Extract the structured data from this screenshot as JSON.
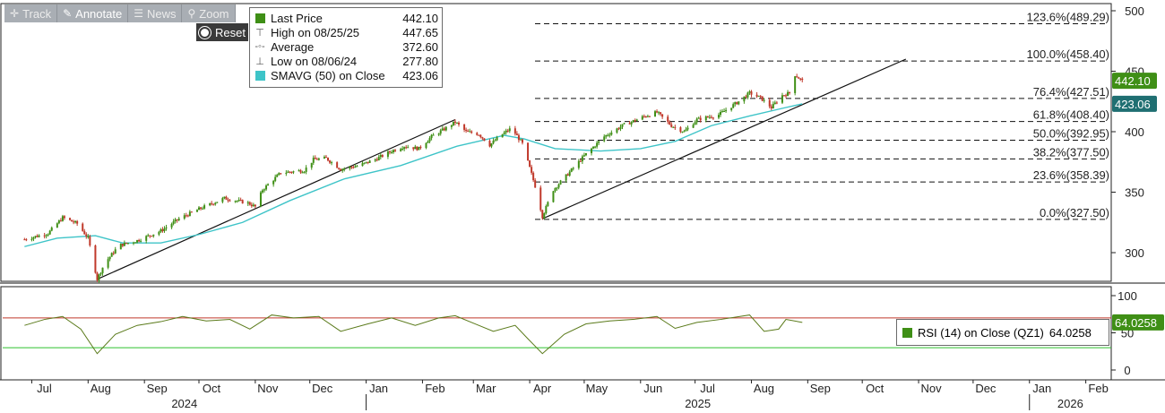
{
  "toolbar": {
    "track": "Track",
    "annotate": "Annotate",
    "news": "News",
    "zoom": "Zoom",
    "reset": "Reset"
  },
  "legend": [
    {
      "label": "Last Price",
      "value": "442.10",
      "icon": "green-square",
      "color": "#3f8f16"
    },
    {
      "label": "High on 08/25/25",
      "value": "447.65",
      "icon": "high-marker"
    },
    {
      "label": "Average",
      "value": "372.60",
      "icon": "average-marker"
    },
    {
      "label": "Low on 08/06/24",
      "value": "277.80",
      "icon": "low-marker"
    },
    {
      "label": "SMAVG (50)  on Close",
      "value": "423.06",
      "icon": "cyan-square",
      "color": "#3ec4c8"
    }
  ],
  "rsi_legend": {
    "label": "RSI (14)  on Close (QZ1)",
    "value": "64.0258"
  },
  "price_tags": {
    "last": "442.10",
    "sma": "423.06",
    "rsi": "64.0258"
  },
  "fib_labels": [
    "123.6%(489.29)",
    "100.0%(458.40)",
    "76.4%(427.51)",
    "61.8%(408.40)",
    "50.0%(392.95)",
    "38.2%(377.50)",
    "23.6%(358.39)",
    "0.0%(327.50)"
  ],
  "colors": {
    "price": "#3f8f16",
    "sma": "#3ec4c8",
    "rsi_line": "#5a7a1a",
    "overbought": "#c0392b",
    "oversold": "#2ec02e"
  },
  "chart_data": [
    {
      "type": "line",
      "title": "",
      "x_months": [
        "Jul",
        "Aug",
        "Sep",
        "Oct",
        "Nov",
        "Dec",
        "Jan",
        "Feb",
        "Mar",
        "Apr",
        "May",
        "Jun",
        "Jul",
        "Aug",
        "Sep",
        "Oct",
        "Nov",
        "Dec",
        "Jan",
        "Feb"
      ],
      "x_years": [
        "2024",
        "2025",
        "2026"
      ],
      "y_ticks": [
        300,
        350,
        400,
        450,
        500
      ],
      "ylim": [
        265,
        505
      ],
      "series": [
        {
          "name": "Last Price",
          "points": [
            [
              "2024-06-27",
              311
            ],
            [
              "2024-07-10",
              316
            ],
            [
              "2024-07-18",
              329
            ],
            [
              "2024-07-26",
              324
            ],
            [
              "2024-08-01",
              312
            ],
            [
              "2024-08-06",
              278
            ],
            [
              "2024-08-10",
              291
            ],
            [
              "2024-08-18",
              306
            ],
            [
              "2024-08-28",
              310
            ],
            [
              "2024-09-10",
              318
            ],
            [
              "2024-09-20",
              328
            ],
            [
              "2024-10-01",
              336
            ],
            [
              "2024-10-15",
              345
            ],
            [
              "2024-10-28",
              341
            ],
            [
              "2024-11-01",
              338
            ],
            [
              "2024-11-05",
              352
            ],
            [
              "2024-11-15",
              366
            ],
            [
              "2024-11-28",
              368
            ],
            [
              "2024-12-03",
              377
            ],
            [
              "2024-12-10",
              378
            ],
            [
              "2024-12-18",
              369
            ],
            [
              "2024-12-28",
              372
            ],
            [
              "2025-01-06",
              377
            ],
            [
              "2025-01-15",
              384
            ],
            [
              "2025-01-22",
              388
            ],
            [
              "2025-01-30",
              386
            ],
            [
              "2025-02-06",
              396
            ],
            [
              "2025-02-14",
              403
            ],
            [
              "2025-02-19",
              408
            ],
            [
              "2025-02-25",
              400
            ],
            [
              "2025-03-04",
              398
            ],
            [
              "2025-03-10",
              389
            ],
            [
              "2025-03-17",
              398
            ],
            [
              "2025-03-22",
              403
            ],
            [
              "2025-03-28",
              390
            ],
            [
              "2025-04-04",
              355
            ],
            [
              "2025-04-08",
              330
            ],
            [
              "2025-04-14",
              352
            ],
            [
              "2025-04-22",
              365
            ],
            [
              "2025-05-01",
              380
            ],
            [
              "2025-05-12",
              396
            ],
            [
              "2025-05-22",
              405
            ],
            [
              "2025-06-02",
              412
            ],
            [
              "2025-06-10",
              416
            ],
            [
              "2025-06-18",
              405
            ],
            [
              "2025-06-25",
              400
            ],
            [
              "2025-07-02",
              410
            ],
            [
              "2025-07-14",
              414
            ],
            [
              "2025-07-25",
              425
            ],
            [
              "2025-07-31",
              432
            ],
            [
              "2025-08-06",
              428
            ],
            [
              "2025-08-12",
              420
            ],
            [
              "2025-08-18",
              430
            ],
            [
              "2025-08-22",
              432
            ],
            [
              "2025-08-25",
              447
            ],
            [
              "2025-08-29",
              442
            ]
          ]
        },
        {
          "name": "SMAVG (50)  on Close",
          "points": [
            [
              "2024-06-27",
              305
            ],
            [
              "2024-07-15",
              312
            ],
            [
              "2024-08-05",
              314
            ],
            [
              "2024-08-20",
              308
            ],
            [
              "2024-09-10",
              308
            ],
            [
              "2024-10-01",
              315
            ],
            [
              "2024-10-25",
              325
            ],
            [
              "2024-11-20",
              343
            ],
            [
              "2024-12-20",
              361
            ],
            [
              "2025-01-20",
              372
            ],
            [
              "2025-02-20",
              388
            ],
            [
              "2025-03-18",
              397
            ],
            [
              "2025-03-29",
              394
            ],
            [
              "2025-04-15",
              386
            ],
            [
              "2025-05-10",
              384
            ],
            [
              "2025-06-01",
              386
            ],
            [
              "2025-06-20",
              392
            ],
            [
              "2025-07-10",
              405
            ],
            [
              "2025-07-31",
              413
            ],
            [
              "2025-08-20",
              420
            ],
            [
              "2025-08-29",
              423
            ]
          ]
        }
      ],
      "trendlines": [
        {
          "from": [
            "2024-08-06",
            278
          ],
          "to": [
            "2025-02-19",
            410
          ]
        },
        {
          "from": [
            "2025-04-08",
            328
          ],
          "to": [
            "2025-10-25",
            460
          ]
        }
      ],
      "fibonacci": [
        {
          "level": "123.6%",
          "price": 489.29
        },
        {
          "level": "100.0%",
          "price": 458.4
        },
        {
          "level": "76.4%",
          "price": 427.51
        },
        {
          "level": "61.8%",
          "price": 408.4
        },
        {
          "level": "50.0%",
          "price": 392.95
        },
        {
          "level": "38.2%",
          "price": 377.5
        },
        {
          "level": "23.6%",
          "price": 358.39
        },
        {
          "level": "0.0%",
          "price": 327.5
        }
      ]
    },
    {
      "type": "line",
      "title": "",
      "y_ticks": [
        0,
        50,
        100
      ],
      "ylim": [
        -10,
        110
      ],
      "bands": {
        "upper": 70,
        "lower": 30
      },
      "series": [
        {
          "name": "RSI (14)  on Close (QZ1)",
          "points": [
            [
              "2024-06-27",
              60
            ],
            [
              "2024-07-08",
              68
            ],
            [
              "2024-07-18",
              72
            ],
            [
              "2024-07-28",
              55
            ],
            [
              "2024-08-06",
              22
            ],
            [
              "2024-08-16",
              48
            ],
            [
              "2024-08-28",
              60
            ],
            [
              "2024-09-10",
              65
            ],
            [
              "2024-09-22",
              72
            ],
            [
              "2024-10-05",
              66
            ],
            [
              "2024-10-18",
              68
            ],
            [
              "2024-10-29",
              55
            ],
            [
              "2024-11-10",
              74
            ],
            [
              "2024-11-22",
              70
            ],
            [
              "2024-12-06",
              72
            ],
            [
              "2024-12-18",
              52
            ],
            [
              "2025-01-02",
              62
            ],
            [
              "2025-01-15",
              70
            ],
            [
              "2025-01-28",
              60
            ],
            [
              "2025-02-10",
              70
            ],
            [
              "2025-02-19",
              73
            ],
            [
              "2025-03-02",
              62
            ],
            [
              "2025-03-12",
              52
            ],
            [
              "2025-03-24",
              60
            ],
            [
              "2025-03-31",
              42
            ],
            [
              "2025-04-08",
              22
            ],
            [
              "2025-04-20",
              48
            ],
            [
              "2025-05-02",
              62
            ],
            [
              "2025-05-15",
              66
            ],
            [
              "2025-05-28",
              68
            ],
            [
              "2025-06-10",
              72
            ],
            [
              "2025-06-20",
              56
            ],
            [
              "2025-07-02",
              64
            ],
            [
              "2025-07-15",
              68
            ],
            [
              "2025-07-31",
              74
            ],
            [
              "2025-08-08",
              52
            ],
            [
              "2025-08-16",
              55
            ],
            [
              "2025-08-20",
              68
            ],
            [
              "2025-08-29",
              64
            ]
          ]
        }
      ]
    }
  ]
}
